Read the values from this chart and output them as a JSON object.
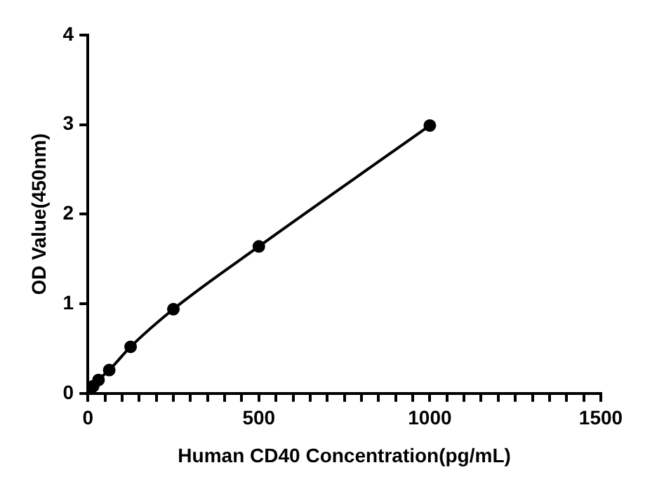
{
  "chart_data": {
    "type": "line",
    "xlabel": "Human CD40 Concentration(pg/mL)",
    "ylabel": "OD Value(450nm)",
    "x": [
      0,
      15.6,
      31.25,
      62.5,
      125,
      250,
      500,
      1000
    ],
    "series": [
      {
        "color": "#000000",
        "values": [
          0.02,
          0.08,
          0.15,
          0.26,
          0.52,
          0.94,
          1.64,
          2.99
        ]
      }
    ],
    "xlim": [
      0,
      1500
    ],
    "xticks": [
      0,
      {
        "value": 50,
        "label": null
      },
      {
        "value": 100,
        "label": null
      },
      {
        "value": 150,
        "label": null
      },
      {
        "value": 200,
        "label": null
      },
      {
        "value": 250,
        "label": null
      },
      {
        "value": 300,
        "label": null
      },
      {
        "value": 350,
        "label": null
      },
      {
        "value": 400,
        "label": null
      },
      {
        "value": 450,
        "label": null
      },
      500,
      {
        "value": 550,
        "label": null
      },
      {
        "value": 600,
        "label": null
      },
      {
        "value": 650,
        "label": null
      },
      {
        "value": 700,
        "label": null
      },
      {
        "value": 750,
        "label": null
      },
      {
        "value": 800,
        "label": null
      },
      {
        "value": 850,
        "label": null
      },
      {
        "value": 900,
        "label": null
      },
      {
        "value": 950,
        "label": null
      },
      1000,
      {
        "value": 1050,
        "label": null
      },
      {
        "value": 1100,
        "label": null
      },
      {
        "value": 1150,
        "label": null
      },
      {
        "value": 1200,
        "label": null
      },
      {
        "value": 1250,
        "label": null
      },
      {
        "value": 1300,
        "label": null
      },
      {
        "value": 1350,
        "label": null
      },
      {
        "value": 1400,
        "label": null
      },
      {
        "value": 1450,
        "label": null
      },
      1500
    ],
    "ylim": [
      0,
      4
    ],
    "yticks": [
      0,
      1,
      2,
      3,
      4
    ],
    "grid": false,
    "legend": false,
    "marker": "circle",
    "line_style": "solid"
  }
}
